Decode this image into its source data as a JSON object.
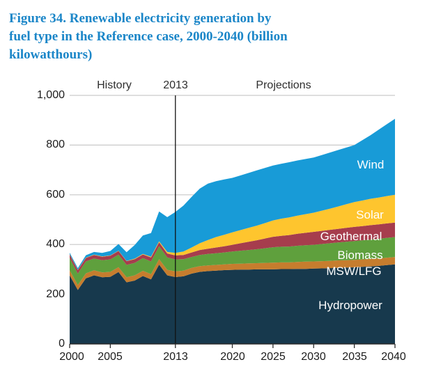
{
  "header": {
    "title_lines": [
      "Figure 34. Renewable electricity generation by",
      "fuel type in the Reference case, 2000-2040 (billion",
      "kilowatthours)"
    ],
    "title_color": "#1b86c8"
  },
  "annotations": {
    "history": "History",
    "divider_year": "2013",
    "projections": "Projections"
  },
  "y_axis": {
    "labels": [
      "1,000",
      "800",
      "600",
      "400",
      "200",
      "0"
    ],
    "values": [
      1000,
      800,
      600,
      400,
      200,
      0
    ]
  },
  "x_axis": {
    "labels": [
      "2000",
      "2005",
      "2013",
      "2020",
      "2025",
      "2030",
      "2035",
      "2040"
    ],
    "tick_years": [
      2000,
      2005,
      2013,
      2020,
      2025,
      2030,
      2035,
      2040
    ]
  },
  "colors": {
    "gridline": "#c9c9c9",
    "axis": "#2b2b2b",
    "divider_line": "#111111",
    "title": "#1b86c8",
    "area_label_text": "#ffffff"
  },
  "chart_data": {
    "type": "area",
    "stacked": true,
    "title": "Figure 34. Renewable electricity generation by fuel type in the Reference case, 2000-2040 (billion kilowatthours)",
    "xlabel": "",
    "ylabel": "billion kilowatthours",
    "xlim": [
      2000,
      2040
    ],
    "ylim": [
      0,
      1000
    ],
    "grid": "horizontal",
    "legend_position": "labels-inside-areas",
    "divider_year": 2013,
    "x": [
      2000,
      2001,
      2002,
      2003,
      2004,
      2005,
      2006,
      2007,
      2008,
      2009,
      2010,
      2011,
      2012,
      2013,
      2014,
      2015,
      2016,
      2017,
      2018,
      2019,
      2020,
      2021,
      2022,
      2023,
      2024,
      2025,
      2026,
      2027,
      2028,
      2029,
      2030,
      2031,
      2032,
      2033,
      2034,
      2035,
      2036,
      2037,
      2038,
      2039,
      2040
    ],
    "series": [
      {
        "name": "Hydropower",
        "color": "#17394d",
        "values": [
          276,
          217,
          264,
          276,
          268,
          270,
          289,
          248,
          255,
          273,
          260,
          319,
          276,
          269,
          272,
          283,
          290,
          293,
          295,
          297,
          298,
          299,
          299,
          300,
          300,
          300,
          301,
          301,
          302,
          302,
          303,
          304,
          305,
          306,
          307,
          308,
          310,
          312,
          314,
          317,
          320
        ]
      },
      {
        "name": "MSW/LFG",
        "color": "#c67d2e",
        "values": [
          20,
          20,
          20,
          20,
          20,
          20,
          20,
          20,
          21,
          21,
          21,
          22,
          22,
          23,
          23,
          23,
          23,
          23,
          23,
          23,
          24,
          24,
          25,
          25,
          26,
          27,
          27,
          27,
          28,
          29,
          29,
          29,
          29,
          30,
          30,
          30,
          30,
          30,
          30,
          30,
          30
        ]
      },
      {
        "name": "Biomass",
        "color": "#5fa03d",
        "values": [
          50,
          46,
          48,
          48,
          49,
          50,
          50,
          50,
          50,
          51,
          51,
          52,
          50,
          48,
          46,
          44,
          45,
          46,
          47,
          48,
          50,
          52,
          54,
          56,
          59,
          62,
          63,
          64,
          65,
          66,
          67,
          69,
          71,
          72,
          74,
          76,
          77,
          78,
          79,
          80,
          80
        ]
      },
      {
        "name": "Geothermal",
        "color": "#a63d4d",
        "values": [
          14,
          14,
          14,
          14,
          14,
          15,
          15,
          15,
          15,
          15,
          16,
          16,
          16,
          16,
          17,
          18,
          20,
          21,
          23,
          25,
          27,
          30,
          33,
          36,
          39,
          42,
          44,
          46,
          48,
          50,
          52,
          53,
          54,
          55,
          56,
          57,
          57,
          58,
          58,
          58,
          58
        ]
      },
      {
        "name": "Solar",
        "color": "#fec52e",
        "values": [
          1,
          1,
          1,
          1,
          1,
          1,
          1,
          1,
          2,
          2,
          3,
          4,
          6,
          10,
          14,
          20,
          27,
          35,
          42,
          46,
          50,
          53,
          56,
          59,
          62,
          66,
          69,
          71,
          73,
          75,
          77,
          81,
          85,
          90,
          95,
          100,
          103,
          106,
          108,
          110,
          112
        ]
      },
      {
        "name": "Wind",
        "color": "#189bd7",
        "values": [
          6,
          7,
          10,
          11,
          14,
          18,
          27,
          35,
          55,
          74,
          95,
          120,
          140,
          165,
          185,
          204,
          220,
          227,
          225,
          223,
          219,
          220,
          221,
          222,
          222,
          221,
          221,
          222,
          222,
          222,
          222,
          224,
          226,
          227,
          228,
          229,
          243,
          256,
          273,
          289,
          306
        ]
      }
    ],
    "area_labels": [
      {
        "text": "Wind"
      },
      {
        "text": "Solar"
      },
      {
        "text": "Geothermal"
      },
      {
        "text": "Biomass"
      },
      {
        "text": "MSW/LFG"
      },
      {
        "text": "Hydropower"
      }
    ]
  }
}
